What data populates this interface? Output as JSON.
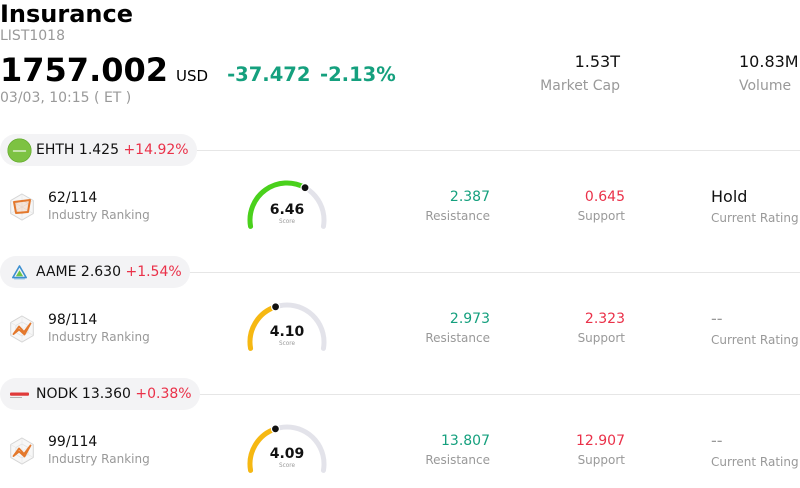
{
  "header": {
    "title": "Insurance",
    "code": "LIST1018",
    "price": "1757.002",
    "currency": "USD",
    "change": "-37.472",
    "change_pct": "-2.13%",
    "timestamp": "03/03, 10:15 ( ET )",
    "market_cap": {
      "value": "1.53T",
      "label": "Market Cap"
    },
    "volume": {
      "value": "10.83M",
      "label": "Volume"
    }
  },
  "colors": {
    "gain": "#ea3149",
    "loss": "#15a07e",
    "muted": "#999999",
    "gauge_track": "#e3e3ea"
  },
  "stocks": [
    {
      "ticker": "EHTH",
      "price": "1.425",
      "change_pct": "+14.92%",
      "logo_icon": "ehealth-logo-icon",
      "ranking_icon": "radar-chart-icon",
      "ranking": "62/114",
      "ranking_label": "Industry Ranking",
      "score": "6.46",
      "score_label": "Score",
      "gauge_color": "#4ad11c",
      "resistance": "2.387",
      "resistance_label": "Resistance",
      "support": "0.645",
      "support_label": "Support",
      "rating": "Hold",
      "rating_label": "Current Rating"
    },
    {
      "ticker": "AAME",
      "price": "2.630",
      "change_pct": "+1.54%",
      "logo_icon": "atlantic-american-logo-icon",
      "ranking_icon": "radar-chart-icon",
      "ranking": "98/114",
      "ranking_label": "Industry Ranking",
      "score": "4.10",
      "score_label": "Score",
      "gauge_color": "#f6b812",
      "resistance": "2.973",
      "resistance_label": "Resistance",
      "support": "2.323",
      "support_label": "Support",
      "rating": "--",
      "rating_label": "Current Rating"
    },
    {
      "ticker": "NODK",
      "price": "13.360",
      "change_pct": "+0.38%",
      "logo_icon": "ni-holdings-logo-icon",
      "ranking_icon": "radar-chart-icon",
      "ranking": "99/114",
      "ranking_label": "Industry Ranking",
      "score": "4.09",
      "score_label": "Score",
      "gauge_color": "#f6b812",
      "resistance": "13.807",
      "resistance_label": "Resistance",
      "support": "12.907",
      "support_label": "Support",
      "rating": "--",
      "rating_label": "Current Rating"
    }
  ]
}
